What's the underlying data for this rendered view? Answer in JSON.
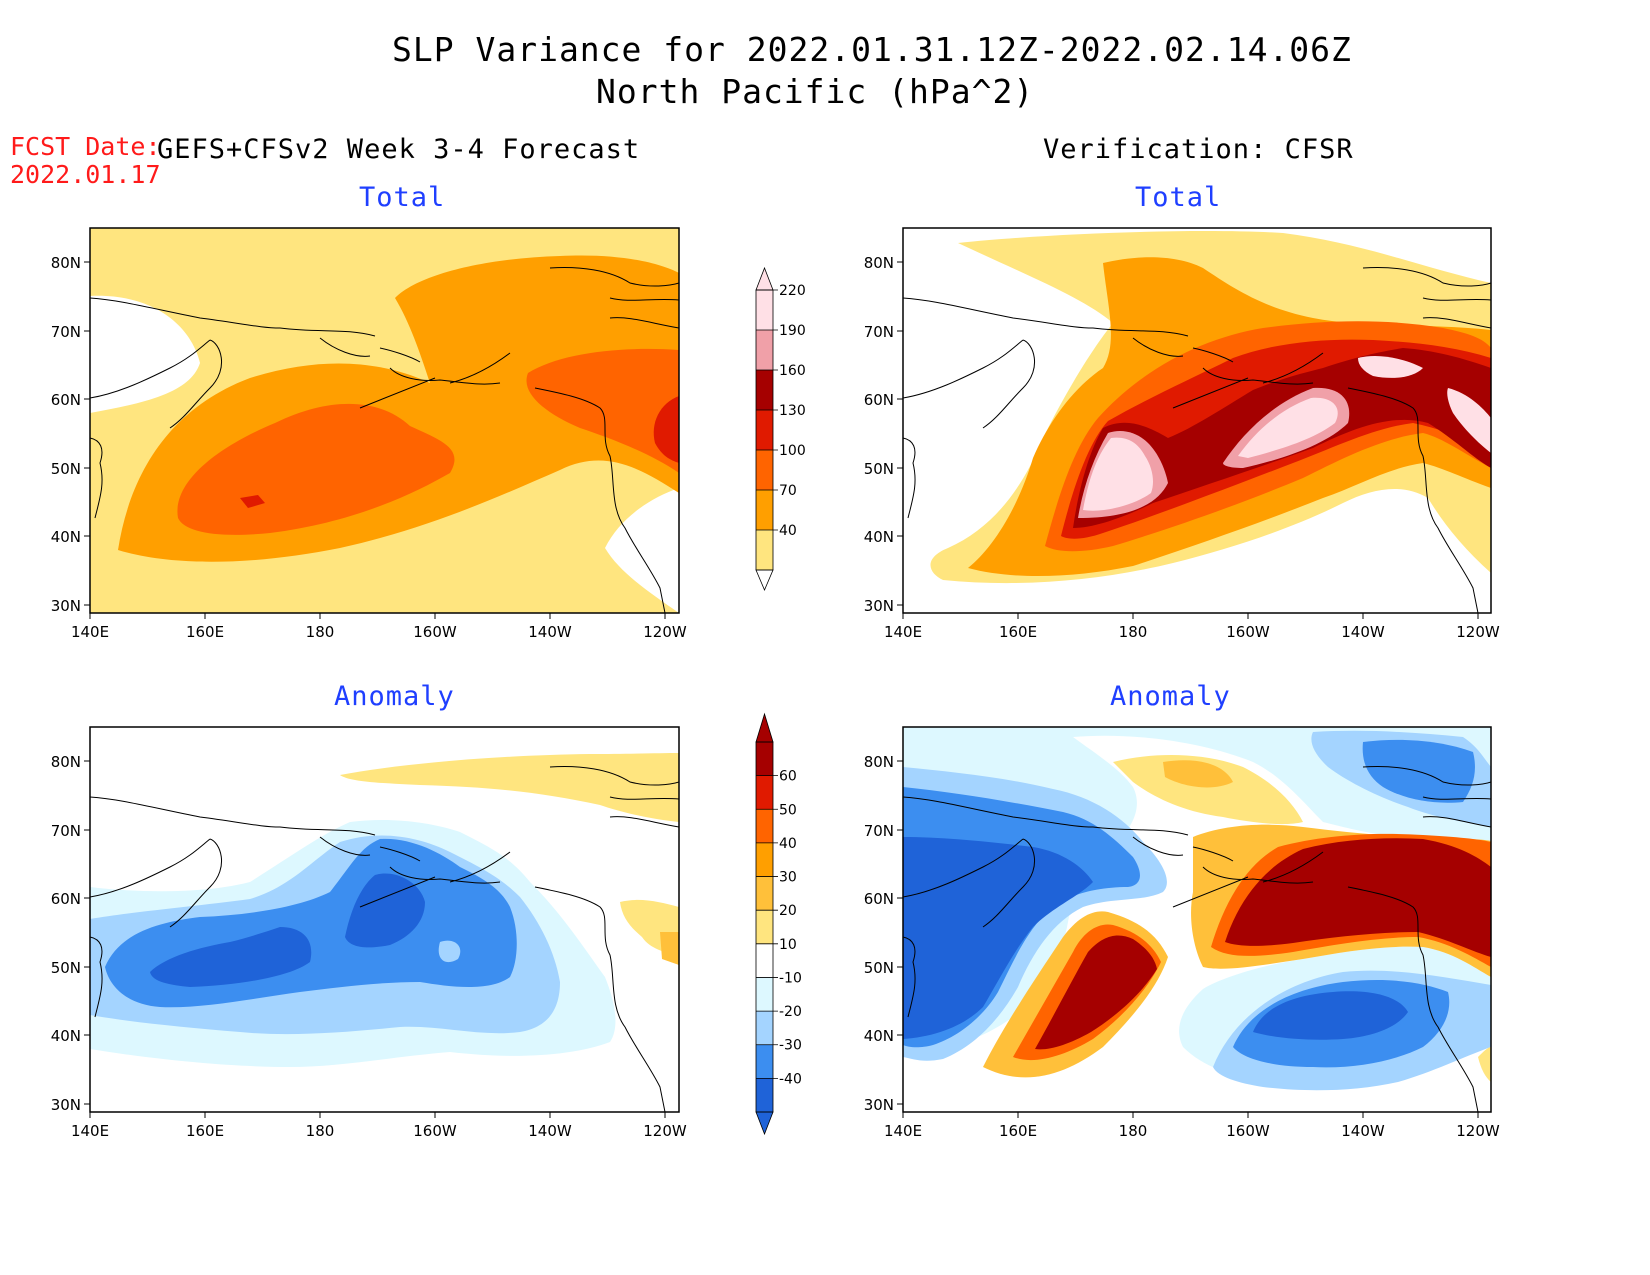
{
  "title": {
    "line1": "SLP Variance for 2022.01.31.12Z-2022.02.14.06Z",
    "line2": "North Pacific (hPa^2)"
  },
  "forecast_date": {
    "label": "FCST Date:",
    "value": "2022.01.17"
  },
  "columns": {
    "left": "GEFS+CFSv2 Week 3-4 Forecast",
    "right": "Verification: CFSR"
  },
  "panels": {
    "fcst_total": "Total",
    "fcst_anomaly": "Anomaly",
    "verif_total": "Total",
    "verif_anomaly": "Anomaly"
  },
  "axes": {
    "lat_labels": [
      "80N",
      "70N",
      "60N",
      "50N",
      "40N",
      "30N"
    ],
    "lon_labels": [
      "140E",
      "160E",
      "180",
      "160W",
      "140W",
      "120W"
    ]
  },
  "colorbars": {
    "total": {
      "levels": [
        "40",
        "70",
        "100",
        "130",
        "160",
        "190",
        "220"
      ],
      "colors": [
        "#ffe57f",
        "#ff9f00",
        "#ff6400",
        "#e01a00",
        "#a50000",
        "#f0a0a8",
        "#ffe0e6"
      ]
    },
    "anomaly": {
      "levels": [
        "-40",
        "-30",
        "-20",
        "-10",
        "10",
        "20",
        "30",
        "40",
        "50",
        "60"
      ],
      "colors": [
        "#1f63d8",
        "#3c8ef0",
        "#a4d4ff",
        "#ddf8ff",
        "#ffffff",
        "#ffe57f",
        "#ffc03a",
        "#ff9f00",
        "#ff6400",
        "#e01a00",
        "#a50000"
      ]
    }
  }
}
